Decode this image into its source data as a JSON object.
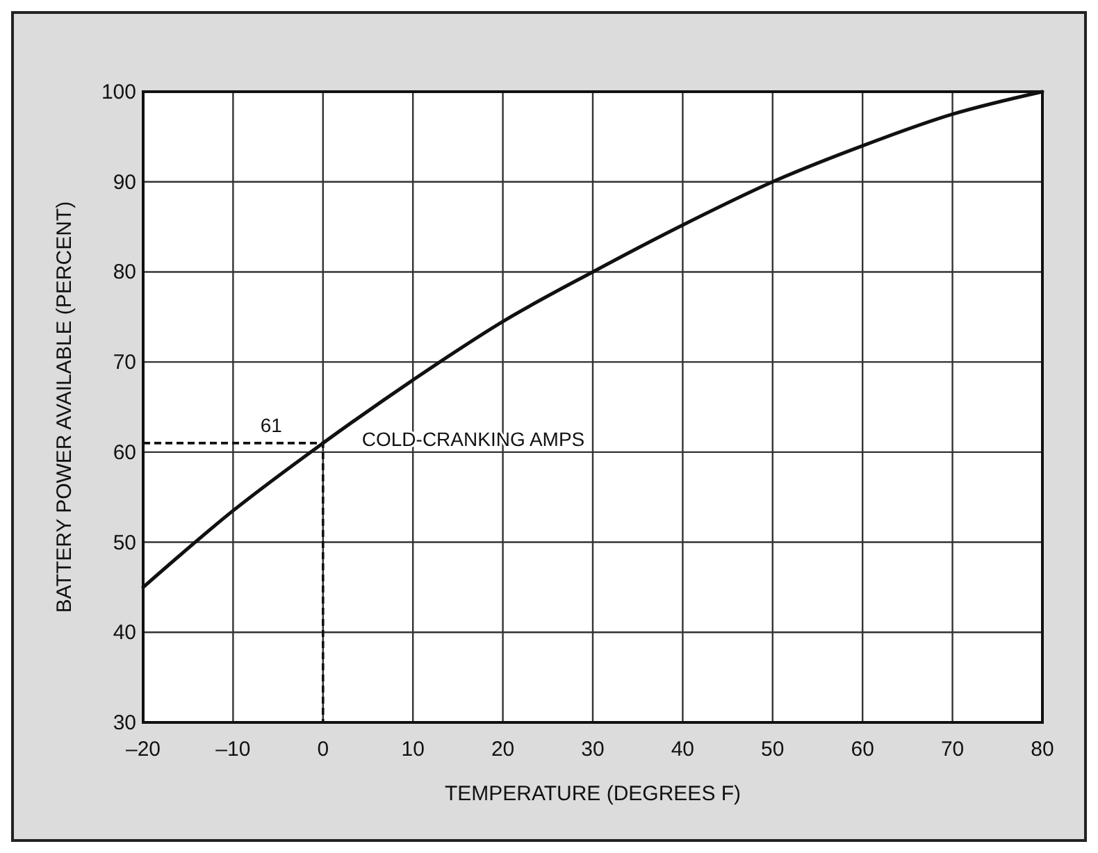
{
  "chart_data": {
    "type": "line",
    "xlabel": "TEMPERATURE (DEGREES F)",
    "ylabel": "BATTERY POWER AVAILABLE (PERCENT)",
    "x": [
      -20,
      -10,
      0,
      10,
      20,
      30,
      40,
      50,
      60,
      70,
      80
    ],
    "series": [
      {
        "color": "#111111",
        "values": [
          45,
          53.5,
          61,
          68,
          74.5,
          80,
          85.2,
          90,
          94,
          97.5,
          100
        ]
      }
    ],
    "xlim": [
      -20,
      80
    ],
    "xticks": [
      {
        "value": -20,
        "label": "–20"
      },
      {
        "value": -10,
        "label": "–10"
      },
      0,
      10,
      20,
      30,
      40,
      50,
      60,
      70,
      80
    ],
    "ylim": [
      30,
      100
    ],
    "yticks": [
      30,
      40,
      50,
      60,
      70,
      80,
      90,
      100
    ],
    "grid": true,
    "marker": "none",
    "line_style": "solid",
    "annotations": [
      {
        "text": "61",
        "x": 0,
        "y": 61
      },
      {
        "text": "COLD-CRANKING AMPS",
        "x": 0,
        "y": 61
      }
    ]
  }
}
